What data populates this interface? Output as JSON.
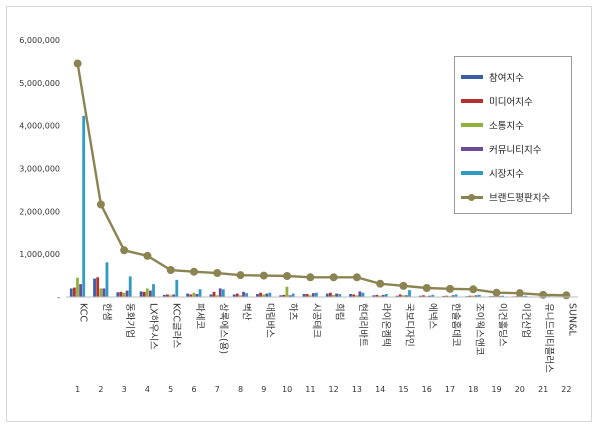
{
  "chart_data": {
    "type": "bar",
    "title": "",
    "xlabel": "",
    "ylabel": "",
    "ylim": [
      0,
      6000000
    ],
    "yticks": [
      0,
      1000000,
      2000000,
      3000000,
      4000000,
      5000000,
      6000000
    ],
    "ytick_labels": [
      "-",
      "1,000,000",
      "2,000,000",
      "3,000,000",
      "4,000,000",
      "5,000,000",
      "6,000,000"
    ],
    "grid": false,
    "legend_position": "top-right",
    "categories": [
      "KCC",
      "한샘",
      "동화기업",
      "LX하우시스",
      "KCC글라스",
      "파세코",
      "상록에스(용)",
      "벽산",
      "대림바스",
      "하츠",
      "시공테크",
      "희림",
      "현대리바트",
      "라이온켐텍",
      "국보디자인",
      "에넥스",
      "한솔홈데코",
      "조이웍스앤코",
      "이건홀딩스",
      "이건산업",
      "유니드비티플러스",
      "SUN&L"
    ],
    "ranks": [
      "1",
      "2",
      "3",
      "4",
      "5",
      "6",
      "7",
      "8",
      "9",
      "10",
      "11",
      "12",
      "13",
      "14",
      "15",
      "16",
      "17",
      "18",
      "19",
      "20",
      "21",
      "22"
    ],
    "series": [
      {
        "name": "참여지수",
        "kind": "bar",
        "color": "#3b5ea8",
        "values": [
          200000,
          430000,
          110000,
          130000,
          50000,
          80000,
          60000,
          60000,
          70000,
          40000,
          70000,
          80000,
          70000,
          40000,
          30000,
          30000,
          25000,
          20000,
          20000,
          15000,
          10000,
          8000
        ]
      },
      {
        "name": "미디어지수",
        "kind": "bar",
        "color": "#b5312e",
        "values": [
          220000,
          460000,
          120000,
          120000,
          60000,
          60000,
          120000,
          80000,
          100000,
          50000,
          70000,
          100000,
          60000,
          50000,
          60000,
          40000,
          30000,
          30000,
          20000,
          20000,
          10000,
          8000
        ]
      },
      {
        "name": "소통지수",
        "kind": "bar",
        "color": "#8fb23a",
        "values": [
          450000,
          200000,
          100000,
          200000,
          40000,
          100000,
          40000,
          40000,
          60000,
          240000,
          40000,
          50000,
          40000,
          30000,
          40000,
          20000,
          20000,
          30000,
          10000,
          10000,
          10000,
          5000
        ]
      },
      {
        "name": "커뮤니티지수",
        "kind": "bar",
        "color": "#6b4a96",
        "values": [
          300000,
          200000,
          150000,
          150000,
          60000,
          70000,
          200000,
          120000,
          80000,
          40000,
          90000,
          80000,
          130000,
          50000,
          40000,
          30000,
          40000,
          40000,
          20000,
          20000,
          10000,
          8000
        ]
      },
      {
        "name": "시장지수",
        "kind": "bar",
        "color": "#2e9bc4",
        "values": [
          4230000,
          810000,
          480000,
          300000,
          400000,
          180000,
          180000,
          90000,
          100000,
          80000,
          100000,
          70000,
          100000,
          70000,
          160000,
          50000,
          60000,
          50000,
          30000,
          30000,
          20000,
          10000
        ]
      },
      {
        "name": "브랜드평판지수",
        "kind": "line",
        "color": "#8b8452",
        "values": [
          5450000,
          2160000,
          1090000,
          960000,
          630000,
          590000,
          560000,
          510000,
          500000,
          490000,
          460000,
          460000,
          460000,
          310000,
          260000,
          210000,
          190000,
          180000,
          100000,
          90000,
          50000,
          40000
        ]
      }
    ]
  }
}
